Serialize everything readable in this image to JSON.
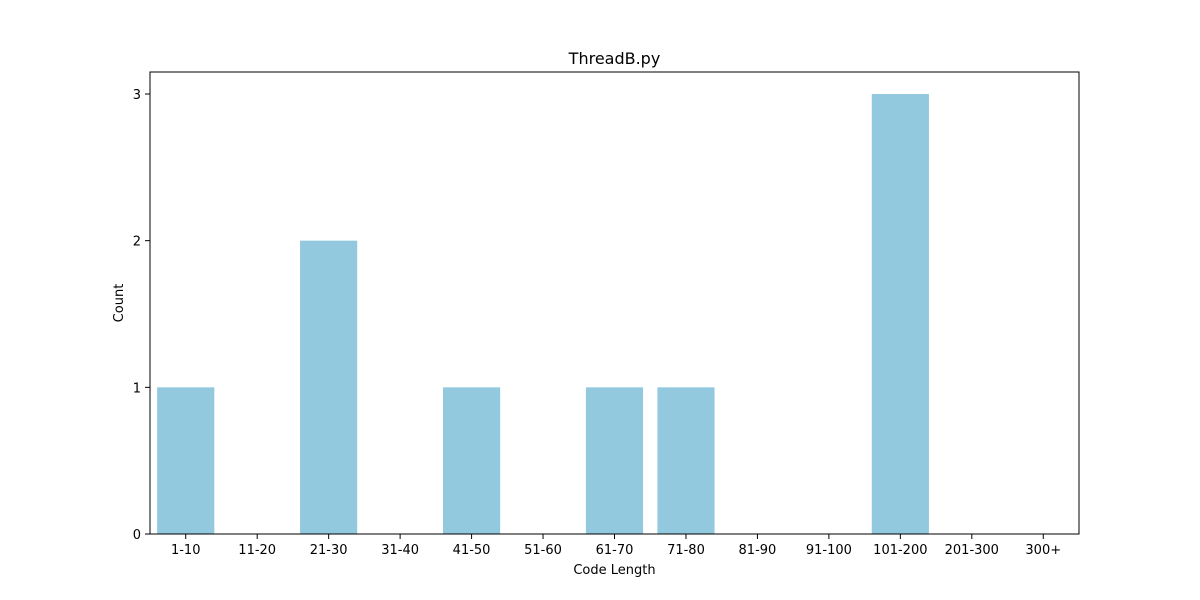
{
  "chart_data": {
    "type": "bar",
    "title": "ThreadB.py",
    "xlabel": "Code Length",
    "ylabel": "Count",
    "categories": [
      "1-10",
      "11-20",
      "21-30",
      "31-40",
      "41-50",
      "51-60",
      "61-70",
      "71-80",
      "81-90",
      "91-100",
      "101-200",
      "201-300",
      "300+"
    ],
    "values": [
      1,
      0,
      2,
      0,
      1,
      0,
      1,
      1,
      0,
      0,
      3,
      0,
      0
    ],
    "yticks": [
      "0",
      "1",
      "2",
      "3"
    ],
    "ylim": [
      0,
      3.15
    ],
    "grid": false,
    "bar_color": "#92c9de"
  }
}
